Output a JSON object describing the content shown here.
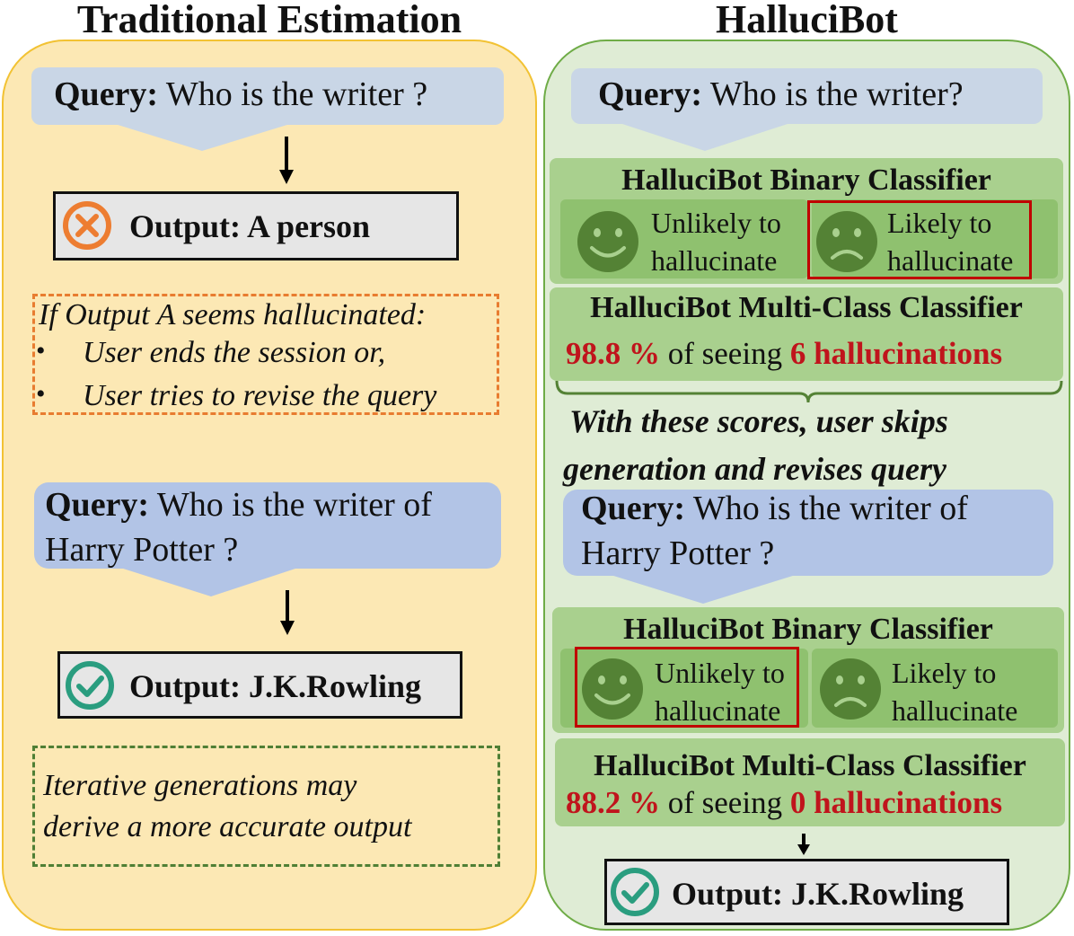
{
  "left": {
    "title": "Traditional Estimation",
    "query1": {
      "label": "Query:",
      "text": " Who is the writer ?"
    },
    "output1": {
      "label": "Output: A person",
      "status": "incorrect",
      "icon": "x-circle-icon",
      "icon_color": "#ed7d31"
    },
    "note1": {
      "heading": "If Output A seems hallucinated:",
      "bullets": [
        "User ends the session or,",
        "User tries to revise the query"
      ]
    },
    "query2": {
      "label": "Query:",
      "text_line1": " Who is the writer of",
      "text_line2": "Harry Potter ?"
    },
    "output2": {
      "label": "Output: J.K.Rowling",
      "status": "correct",
      "icon": "check-circle-icon",
      "icon_color": "#2a9d7f"
    },
    "note2": {
      "line1": "Iterative generations may",
      "line2": "derive a more accurate output"
    }
  },
  "right": {
    "title": "HalluciBot",
    "query1": {
      "label": "Query:",
      "text": " Who is the writer?"
    },
    "binary1": {
      "heading": "HalluciBot Binary Classifier",
      "unlikely_line1": "Unlikely to",
      "unlikely_line2": "hallucinate",
      "likely_line1": "Likely to",
      "likely_line2": "hallucinate",
      "selected": "likely"
    },
    "multi1": {
      "heading": "HalluciBot Multi-Class Classifier",
      "percent": "98.8 %",
      "middle": " of seeing ",
      "result": "6 hallucinations"
    },
    "conclusion": {
      "line1": "With these scores, user skips",
      "line2": "generation and revises query"
    },
    "query2": {
      "label": "Query:",
      "text_line1": " Who is the writer of",
      "text_line2": "Harry Potter ?"
    },
    "binary2": {
      "heading": "HalluciBot Binary Classifier",
      "unlikely_line1": "Unlikely to",
      "unlikely_line2": "hallucinate",
      "likely_line1": "Likely to",
      "likely_line2": "hallucinate",
      "selected": "unlikely"
    },
    "multi2": {
      "heading": "HalluciBot Multi-Class Classifier",
      "percent": "88.2 %",
      "middle": " of seeing ",
      "result": "0 hallucinations"
    },
    "output": {
      "label": "Output: J.K.Rowling",
      "status": "correct",
      "icon": "check-circle-icon",
      "icon_color": "#2a9d7f"
    }
  },
  "colors": {
    "left_panel": "#fce8b4",
    "left_border": "#f2c233",
    "right_panel": "#dfecd5",
    "right_border": "#6fac47",
    "query_bubble_1": "#c9d6e6",
    "query_bubble_2": "#b2c4e6",
    "classifier_box": "#a9d08e",
    "face": "#548235",
    "highlight": "#c00000"
  }
}
